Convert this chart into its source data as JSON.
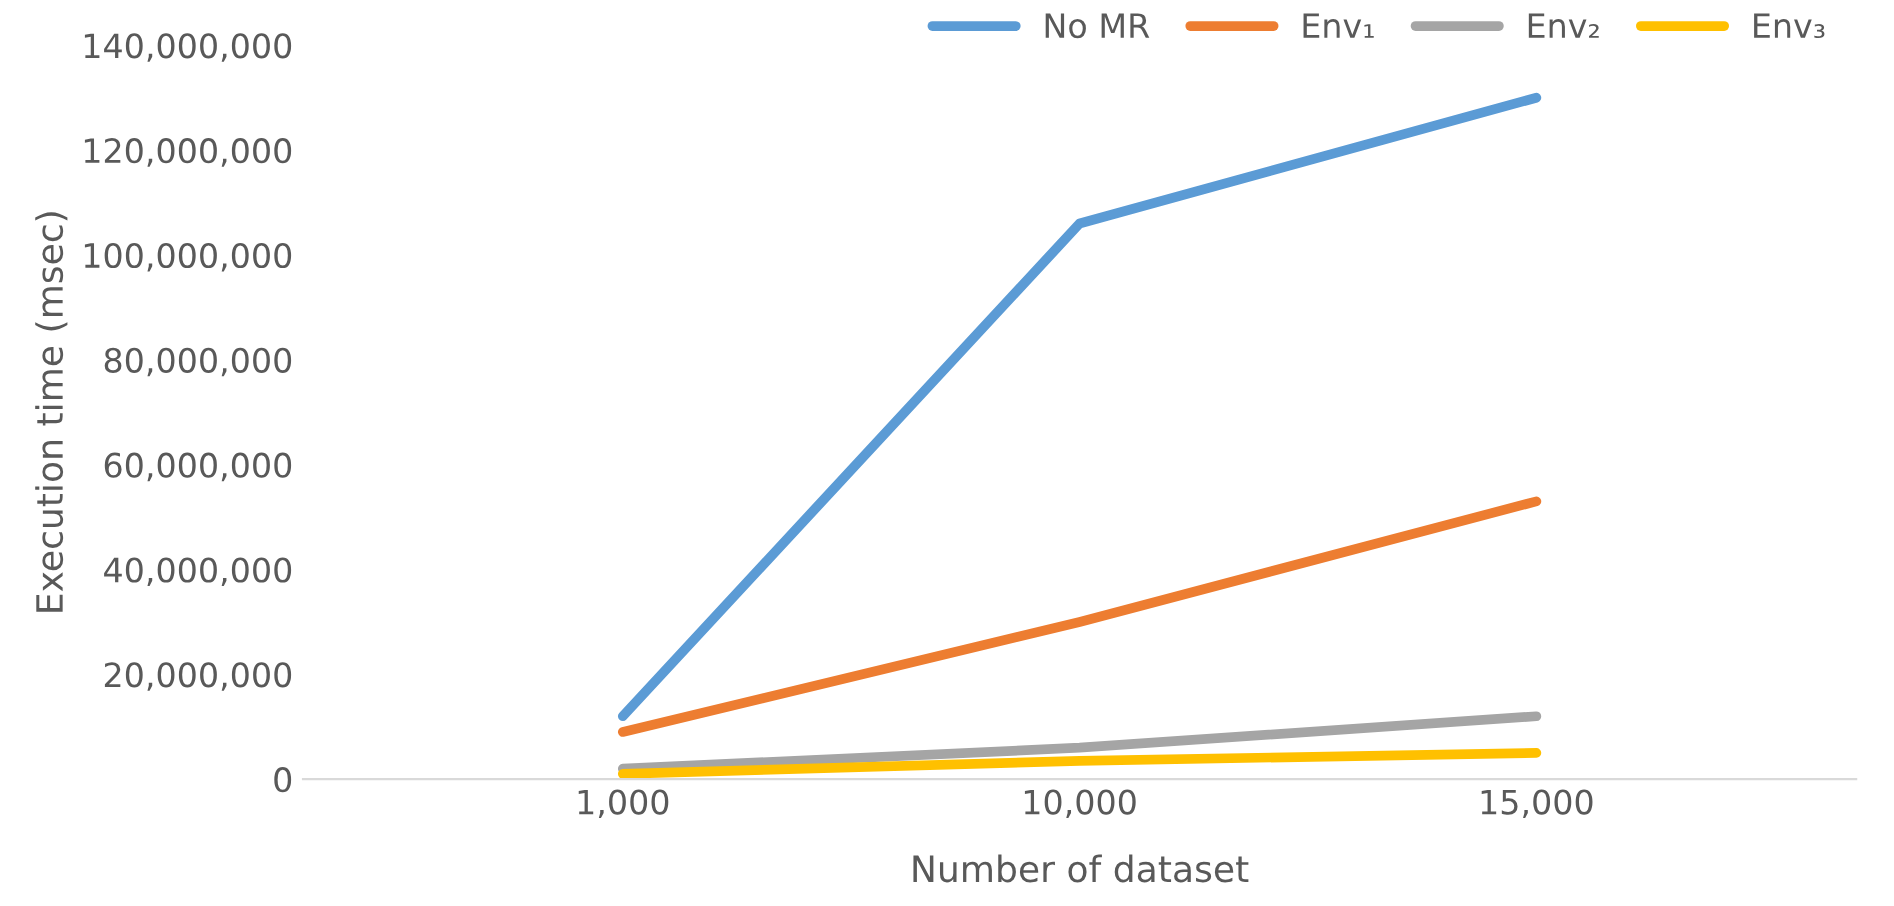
{
  "chart_data": {
    "type": "line",
    "xlabel": "Number of dataset",
    "ylabel": "Execution time (msec)",
    "categories": [
      "1,000",
      "10,000",
      "15,000"
    ],
    "series": [
      {
        "name": "No MR",
        "color": "#5b9bd5",
        "values": [
          12000000,
          106000000,
          130000000
        ]
      },
      {
        "name": "Env₁",
        "color": "#ed7d31",
        "values": [
          9000000,
          30000000,
          53000000
        ]
      },
      {
        "name": "Env₂",
        "color": "#a5a5a5",
        "values": [
          2000000,
          6000000,
          12000000
        ]
      },
      {
        "name": "Env₃",
        "color": "#ffc000",
        "values": [
          1000000,
          3500000,
          5000000
        ]
      }
    ],
    "ylim": [
      0,
      140000000
    ],
    "yticks": [
      {
        "value": 0,
        "label": "0"
      },
      {
        "value": 20000000,
        "label": "20,000,000"
      },
      {
        "value": 40000000,
        "label": "40,000,000"
      },
      {
        "value": 60000000,
        "label": "60,000,000"
      },
      {
        "value": 80000000,
        "label": "80,000,000"
      },
      {
        "value": 100000000,
        "label": "100,000,000"
      },
      {
        "value": 120000000,
        "label": "120,000,000"
      },
      {
        "value": 140000000,
        "label": "140,000,000"
      }
    ],
    "grid": false,
    "legend": "top right",
    "marker": "none",
    "line_style": "solid"
  }
}
